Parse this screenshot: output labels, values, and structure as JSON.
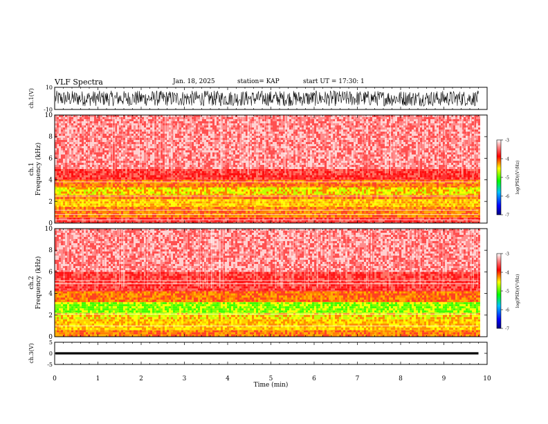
{
  "header": {
    "title": "VLF Spectra",
    "date": "Jan. 18, 2025",
    "station": "station= KAP",
    "start": "start UT = 17:30: 1"
  },
  "colors": {
    "spectrogram_low": "#ff0000",
    "spectrogram_mid": "#ffff00",
    "spectrogram_high": "#00ff00",
    "waveform": "#000000"
  },
  "chart_data": [
    {
      "type": "line",
      "name": "ch1-waveform",
      "ylabel": "ch.1(V)",
      "ylim": [
        -10,
        10
      ],
      "yticks": [
        "10",
        "-10"
      ],
      "xlim": [
        0,
        10
      ],
      "amplitude_range": [
        -7,
        7
      ]
    },
    {
      "type": "heatmap",
      "name": "ch1-spectrogram",
      "ylabel": "ch.1\nFrequency (kHz)",
      "ylim": [
        0,
        10
      ],
      "yticks": [
        "0",
        "2",
        "4",
        "6",
        "8",
        "10"
      ],
      "xlim": [
        0,
        10
      ],
      "data_end_min": 9.8,
      "bands_khz": [
        {
          "from": 0,
          "to": 0.5,
          "level": "red"
        },
        {
          "from": 0.5,
          "to": 1.5,
          "level": "orange"
        },
        {
          "from": 1.5,
          "to": 2.2,
          "level": "yellow"
        },
        {
          "from": 2.2,
          "to": 2.6,
          "level": "orange"
        },
        {
          "from": 2.6,
          "to": 3.3,
          "level": "yellow-green"
        },
        {
          "from": 3.3,
          "to": 4.0,
          "level": "orange"
        },
        {
          "from": 4.0,
          "to": 5.0,
          "level": "red"
        },
        {
          "from": 5.0,
          "to": 10,
          "level": "light-red"
        }
      ],
      "lines_khz": [
        3.8,
        2.5,
        1.2,
        0.8,
        0.3
      ],
      "colorbar": {
        "ticks": [
          "-3",
          "-4",
          "-5",
          "-6",
          "-7"
        ],
        "label": "log(PSD)(V²/Hz)"
      }
    },
    {
      "type": "heatmap",
      "name": "ch2-spectrogram",
      "ylabel": "ch.2\nFrequency (kHz)",
      "ylim": [
        0,
        10
      ],
      "yticks": [
        "0",
        "2",
        "4",
        "6",
        "8",
        "10"
      ],
      "xlim": [
        0,
        10
      ],
      "data_end_min": 9.8,
      "bands_khz": [
        {
          "from": 0,
          "to": 0.6,
          "level": "orange"
        },
        {
          "from": 0.6,
          "to": 1.6,
          "level": "yellow"
        },
        {
          "from": 1.6,
          "to": 2.2,
          "level": "yellow-green"
        },
        {
          "from": 2.2,
          "to": 3.2,
          "level": "green"
        },
        {
          "from": 3.2,
          "to": 4.2,
          "level": "orange"
        },
        {
          "from": 4.2,
          "to": 6.0,
          "level": "red"
        },
        {
          "from": 6.0,
          "to": 10,
          "level": "light-red"
        }
      ],
      "lines_khz": [
        5.2,
        4.9,
        2.1,
        1.0
      ],
      "colorbar": {
        "ticks": [
          "-3",
          "-4",
          "-5",
          "-6",
          "-7"
        ],
        "label": "log(PSD)(V²/Hz)"
      }
    },
    {
      "type": "line",
      "name": "ch3-waveform",
      "ylabel": "ch.3(V)",
      "ylim": [
        -5,
        5
      ],
      "yticks": [
        "5",
        "0",
        "-5"
      ],
      "xlim": [
        0,
        10
      ],
      "amplitude_range": [
        -0.5,
        0.5
      ]
    }
  ],
  "xaxis": {
    "label": "Time (min)",
    "ticks": [
      "0",
      "1",
      "2",
      "3",
      "4",
      "5",
      "6",
      "7",
      "8",
      "9",
      "10"
    ]
  }
}
